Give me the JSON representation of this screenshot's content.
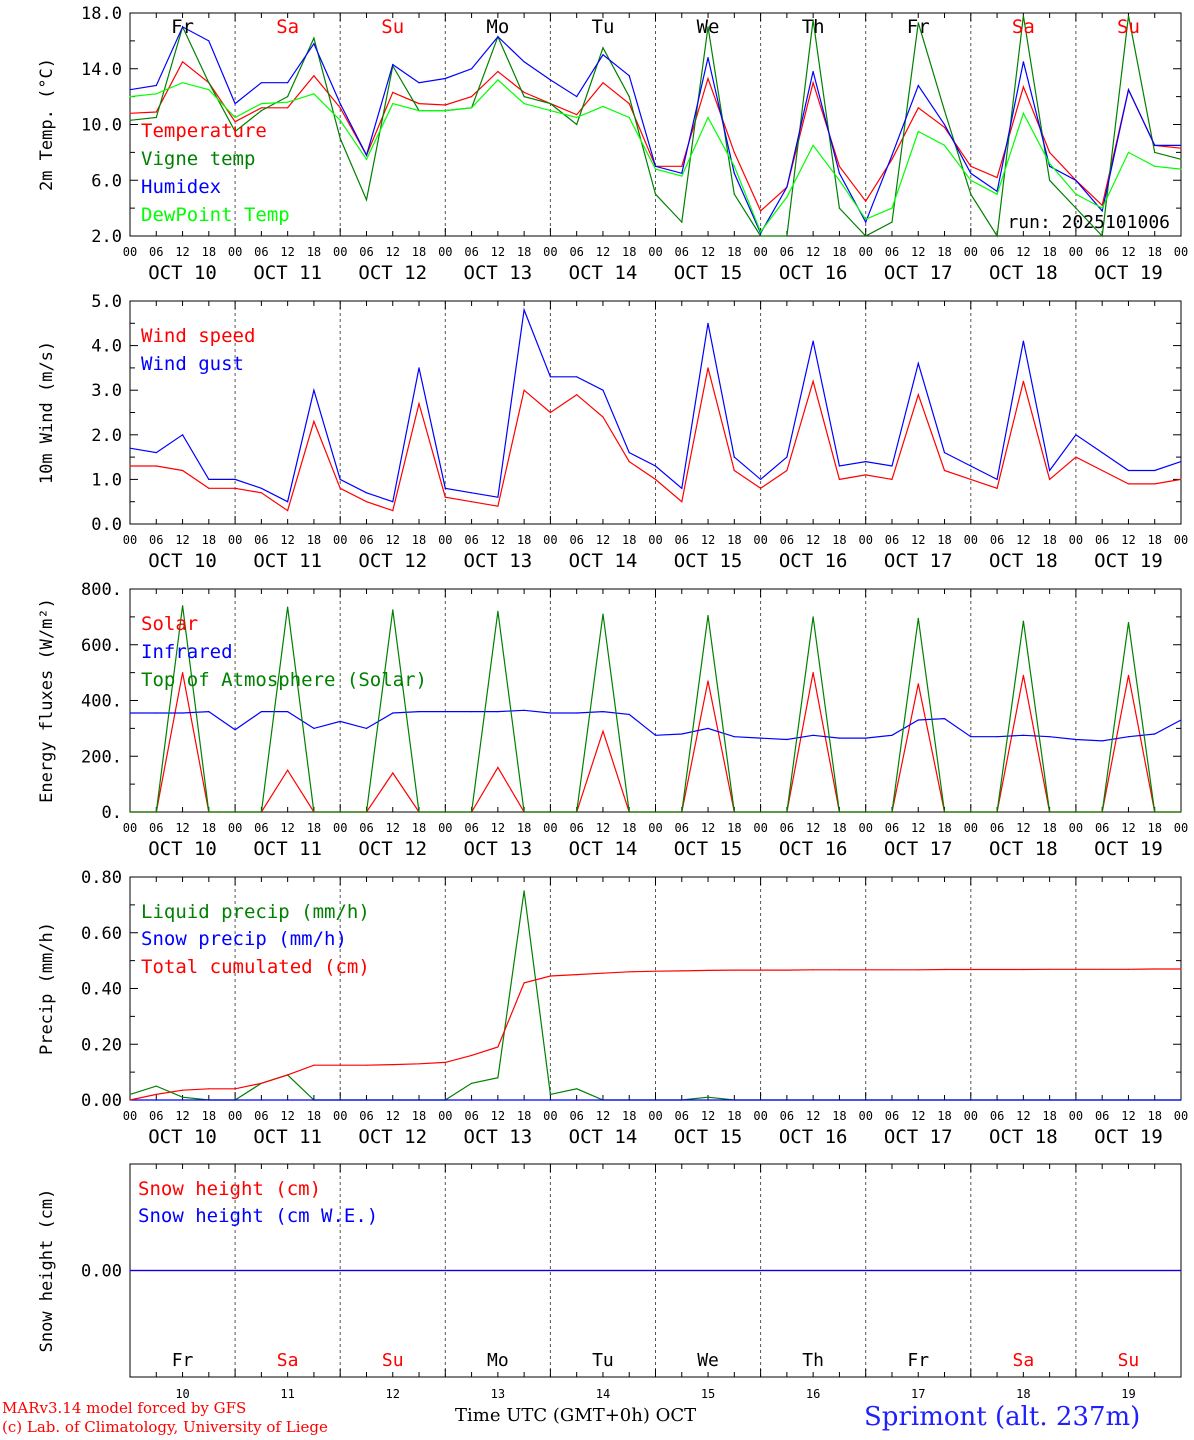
{
  "chart_data": [
    {
      "type": "line",
      "ylabel": "2m Temp. (°C)",
      "ylim": [
        2,
        18
      ],
      "yticks": [
        "18.0",
        "14.0",
        "10.0",
        "6.0",
        "2.0"
      ],
      "yticks_values": [
        18,
        14,
        10,
        6,
        2
      ],
      "x_hours": [
        0,
        6,
        12,
        18,
        24,
        30,
        36,
        42,
        48,
        54,
        60,
        66,
        72,
        78,
        84,
        90,
        96,
        102,
        108,
        114,
        120,
        126,
        132,
        138,
        144,
        150,
        156,
        162,
        168,
        174,
        180,
        186,
        192,
        198,
        204,
        210,
        216,
        222,
        228,
        234,
        240
      ],
      "run_label": "run: 2025101006",
      "series": [
        {
          "name": "Temperature",
          "color": "#ff0000",
          "values": [
            10.8,
            10.9,
            14.5,
            13.0,
            10.2,
            11.2,
            11.2,
            13.5,
            11.2,
            7.8,
            12.3,
            11.5,
            11.4,
            12.0,
            13.8,
            12.3,
            11.5,
            10.7,
            13.0,
            11.5,
            7.0,
            7.0,
            13.3,
            8.0,
            3.8,
            5.5,
            13.0,
            7.0,
            4.5,
            7.5,
            11.2,
            9.8,
            7.0,
            6.2,
            12.7,
            8.0,
            6.0,
            4.2,
            12.5,
            8.5,
            8.3
          ]
        },
        {
          "name": "Vigne temp",
          "color": "#008000",
          "values": [
            10.3,
            10.5,
            17.0,
            13.0,
            9.5,
            11.0,
            12.0,
            16.2,
            9.0,
            4.6,
            14.2,
            11.0,
            11.0,
            11.2,
            16.3,
            12.0,
            11.5,
            10.0,
            15.5,
            12.0,
            5.0,
            3.0,
            17.0,
            5.0,
            2.0,
            2.0,
            17.5,
            4.0,
            2.0,
            3.0,
            17.3,
            11.0,
            5.0,
            2.0,
            17.8,
            6.0,
            4.0,
            2.0,
            17.8,
            8.0,
            7.5
          ]
        },
        {
          "name": "Humidex",
          "color": "#0000ff",
          "values": [
            12.5,
            12.8,
            17.0,
            16.0,
            11.5,
            13.0,
            13.0,
            15.8,
            11.5,
            7.8,
            14.3,
            13.0,
            13.3,
            14.0,
            16.3,
            14.5,
            13.2,
            12.0,
            15.0,
            13.5,
            7.0,
            6.5,
            14.8,
            6.5,
            2.2,
            5.5,
            13.8,
            6.5,
            3.0,
            7.8,
            12.8,
            10.0,
            6.5,
            5.2,
            14.5,
            7.0,
            6.0,
            3.8,
            12.5,
            8.5,
            8.5
          ]
        },
        {
          "name": "DewPoint Temp",
          "color": "#00ff00",
          "values": [
            12.0,
            12.2,
            13.0,
            12.5,
            10.5,
            11.5,
            11.6,
            12.2,
            10.3,
            7.5,
            11.5,
            11.0,
            11.0,
            11.2,
            13.2,
            11.5,
            11.0,
            10.5,
            11.3,
            10.5,
            6.8,
            6.3,
            10.5,
            7.0,
            2.3,
            4.8,
            8.5,
            6.0,
            3.2,
            4.0,
            9.5,
            8.5,
            6.0,
            5.0,
            10.8,
            7.2,
            5.0,
            4.0,
            8.0,
            7.0,
            6.8
          ]
        }
      ]
    },
    {
      "type": "line",
      "ylabel": "10m Wind (m/s)",
      "ylim": [
        0,
        5
      ],
      "yticks": [
        "5.0",
        "4.0",
        "3.0",
        "2.0",
        "1.0",
        "0.0"
      ],
      "yticks_values": [
        5,
        4,
        3,
        2,
        1,
        0
      ],
      "x_hours": [
        0,
        6,
        12,
        18,
        24,
        30,
        36,
        42,
        48,
        54,
        60,
        66,
        72,
        78,
        84,
        90,
        96,
        102,
        108,
        114,
        120,
        126,
        132,
        138,
        144,
        150,
        156,
        162,
        168,
        174,
        180,
        186,
        192,
        198,
        204,
        210,
        216,
        222,
        228,
        234,
        240
      ],
      "series": [
        {
          "name": "Wind speed",
          "color": "#ff0000",
          "values": [
            1.3,
            1.3,
            1.2,
            0.8,
            0.8,
            0.7,
            0.3,
            2.3,
            0.8,
            0.5,
            0.3,
            2.7,
            0.6,
            0.5,
            0.4,
            3.0,
            2.5,
            2.9,
            2.4,
            1.4,
            1.0,
            0.5,
            3.5,
            1.2,
            0.8,
            1.2,
            3.2,
            1.0,
            1.1,
            1.0,
            2.9,
            1.2,
            1.0,
            0.8,
            3.2,
            1.0,
            1.5,
            1.2,
            0.9,
            0.9,
            1.0
          ]
        },
        {
          "name": "Wind gust",
          "color": "#0000ff",
          "values": [
            1.7,
            1.6,
            2.0,
            1.0,
            1.0,
            0.8,
            0.5,
            3.0,
            1.0,
            0.7,
            0.5,
            3.5,
            0.8,
            0.7,
            0.6,
            4.8,
            3.3,
            3.3,
            3.0,
            1.6,
            1.3,
            0.8,
            4.5,
            1.5,
            1.0,
            1.5,
            4.1,
            1.3,
            1.4,
            1.3,
            3.6,
            1.6,
            1.3,
            1.0,
            4.1,
            1.2,
            2.0,
            1.6,
            1.2,
            1.2,
            1.4
          ]
        }
      ]
    },
    {
      "type": "line",
      "ylabel": "Energy fluxes (W/m²)",
      "ylim": [
        0,
        800
      ],
      "yticks": [
        "800.",
        "600.",
        "400.",
        "200.",
        "0."
      ],
      "yticks_values": [
        800,
        600,
        400,
        200,
        0
      ],
      "x_hours": [
        0,
        6,
        12,
        18,
        24,
        30,
        36,
        42,
        48,
        54,
        60,
        66,
        72,
        78,
        84,
        90,
        96,
        102,
        108,
        114,
        120,
        126,
        132,
        138,
        144,
        150,
        156,
        162,
        168,
        174,
        180,
        186,
        192,
        198,
        204,
        210,
        216,
        222,
        228,
        234,
        240
      ],
      "series": [
        {
          "name": "Solar",
          "color": "#ff0000",
          "values": [
            0,
            0,
            500,
            0,
            0,
            0,
            150,
            0,
            0,
            0,
            140,
            0,
            0,
            0,
            160,
            0,
            0,
            0,
            290,
            0,
            0,
            0,
            470,
            0,
            0,
            0,
            500,
            0,
            0,
            0,
            460,
            0,
            0,
            0,
            490,
            0,
            0,
            0,
            490,
            0,
            0
          ]
        },
        {
          "name": "Infrared",
          "color": "#0000ff",
          "values": [
            355,
            355,
            355,
            360,
            295,
            360,
            360,
            300,
            325,
            300,
            355,
            360,
            360,
            360,
            360,
            365,
            355,
            355,
            360,
            350,
            275,
            280,
            300,
            270,
            265,
            260,
            275,
            265,
            265,
            275,
            330,
            335,
            270,
            270,
            275,
            270,
            260,
            255,
            270,
            280,
            330
          ]
        },
        {
          "name": "Top of Atmosphere (Solar)",
          "color": "#008000",
          "values": [
            0,
            0,
            740,
            0,
            0,
            0,
            735,
            0,
            0,
            0,
            725,
            0,
            0,
            0,
            720,
            0,
            0,
            0,
            710,
            0,
            0,
            0,
            705,
            0,
            0,
            0,
            700,
            0,
            0,
            0,
            695,
            0,
            0,
            0,
            685,
            0,
            0,
            0,
            680,
            0,
            0
          ]
        }
      ]
    },
    {
      "type": "line",
      "ylabel": "Precip (mm/h)",
      "ylim": [
        0,
        0.8
      ],
      "yticks": [
        "0.80",
        "0.60",
        "0.40",
        "0.20",
        "0.00"
      ],
      "yticks_values": [
        0.8,
        0.6,
        0.4,
        0.2,
        0
      ],
      "x_hours": [
        0,
        6,
        12,
        18,
        24,
        30,
        36,
        42,
        48,
        54,
        60,
        66,
        72,
        78,
        84,
        90,
        96,
        102,
        108,
        114,
        120,
        126,
        132,
        138,
        144,
        150,
        156,
        162,
        168,
        174,
        180,
        186,
        192,
        198,
        204,
        210,
        216,
        222,
        228,
        234,
        240
      ],
      "series": [
        {
          "name": "Liquid precip (mm/h)",
          "color": "#008000",
          "values": [
            0.02,
            0.05,
            0.01,
            0,
            0,
            0.06,
            0.09,
            0,
            0,
            0,
            0,
            0,
            0,
            0.06,
            0.08,
            0.75,
            0.02,
            0.04,
            0,
            0,
            0,
            0,
            0.01,
            0,
            0,
            0,
            0,
            0,
            0,
            0,
            0,
            0,
            0,
            0,
            0,
            0,
            0,
            0,
            0,
            0,
            0
          ]
        },
        {
          "name": "Snow precip (mm/h)",
          "color": "#0000ff",
          "values": [
            0,
            0,
            0,
            0,
            0,
            0,
            0,
            0,
            0,
            0,
            0,
            0,
            0,
            0,
            0,
            0,
            0,
            0,
            0,
            0,
            0,
            0,
            0,
            0,
            0,
            0,
            0,
            0,
            0,
            0,
            0,
            0,
            0,
            0,
            0,
            0,
            0,
            0,
            0,
            0,
            0
          ]
        },
        {
          "name": "Total cumulated (cm)",
          "color": "#ff0000",
          "values": [
            0,
            0.02,
            0.035,
            0.04,
            0.04,
            0.06,
            0.09,
            0.125,
            0.125,
            0.125,
            0.127,
            0.13,
            0.135,
            0.16,
            0.19,
            0.42,
            0.445,
            0.45,
            0.455,
            0.46,
            0.462,
            0.463,
            0.465,
            0.466,
            0.466,
            0.466,
            0.467,
            0.467,
            0.467,
            0.467,
            0.467,
            0.468,
            0.468,
            0.468,
            0.468,
            0.469,
            0.469,
            0.469,
            0.469,
            0.47,
            0.47
          ]
        }
      ]
    },
    {
      "type": "line",
      "ylabel": "Snow height (cm)",
      "ylim": [
        -1,
        1
      ],
      "yticks": [
        "0.00"
      ],
      "yticks_values": [
        0
      ],
      "x_hours": [
        0,
        240
      ],
      "series": [
        {
          "name": "Snow height (cm)",
          "color": "#ff0000",
          "values": [
            0,
            0
          ]
        },
        {
          "name": "Snow height (cm W.E.)",
          "color": "#0000ff",
          "values": [
            0,
            0
          ]
        }
      ]
    }
  ],
  "weekdays": [
    {
      "label": "Fr",
      "color": "#000000"
    },
    {
      "label": "Sa",
      "color": "#ff0000"
    },
    {
      "label": "Su",
      "color": "#ff0000"
    },
    {
      "label": "Mo",
      "color": "#000000"
    },
    {
      "label": "Tu",
      "color": "#000000"
    },
    {
      "label": "We",
      "color": "#000000"
    },
    {
      "label": "Th",
      "color": "#000000"
    },
    {
      "label": "Fr",
      "color": "#000000"
    },
    {
      "label": "Sa",
      "color": "#ff0000"
    },
    {
      "label": "Su",
      "color": "#ff0000"
    }
  ],
  "day_labels": [
    "OCT 10",
    "OCT 11",
    "OCT 12",
    "OCT 13",
    "OCT 14",
    "OCT 15",
    "OCT 16",
    "OCT 17",
    "OCT 18",
    "OCT 19"
  ],
  "day_numbers": [
    "10",
    "11",
    "12",
    "13",
    "14",
    "15",
    "16",
    "17",
    "18",
    "19"
  ],
  "hour_ticks": [
    "00",
    "06",
    "12",
    "18"
  ],
  "final_hour": "00",
  "footer": {
    "credit_line1": "MARv3.14 model forced by GFS",
    "credit_line2": "(c) Lab. of Climatology, University of Liege",
    "xlabel": "Time UTC (GMT+0h) OCT",
    "station": "Sprimont (alt. 237m)"
  }
}
